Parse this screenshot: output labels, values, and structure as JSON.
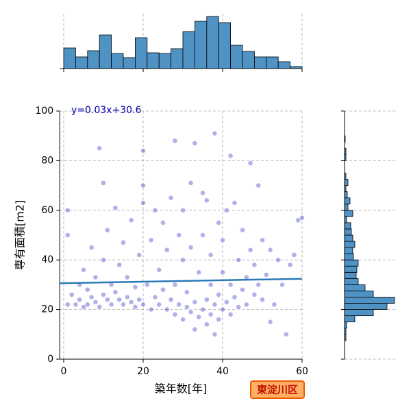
{
  "chart_data": [
    {
      "type": "scatter",
      "xlabel": "築年数[年]",
      "ylabel": "専有面積[m2]",
      "annotation": "y=0.03x+30.6",
      "xlim": [
        -1,
        60
      ],
      "ylim": [
        0,
        100
      ],
      "xticks": [
        0,
        20,
        40,
        60
      ],
      "yticks": [
        0,
        20,
        40,
        60,
        80,
        100
      ],
      "grid": true,
      "color": "#2020c0",
      "x": [
        1,
        1,
        1,
        2,
        3,
        4,
        4,
        5,
        5,
        6,
        6,
        7,
        7,
        8,
        8,
        9,
        9,
        10,
        10,
        10,
        11,
        11,
        12,
        12,
        13,
        13,
        14,
        14,
        15,
        15,
        16,
        16,
        17,
        17,
        18,
        18,
        19,
        19,
        20,
        20,
        20,
        20,
        21,
        22,
        22,
        23,
        23,
        24,
        24,
        25,
        25,
        26,
        26,
        27,
        27,
        28,
        28,
        28,
        29,
        29,
        30,
        30,
        30,
        31,
        31,
        32,
        32,
        32,
        33,
        33,
        33,
        34,
        34,
        35,
        35,
        35,
        36,
        36,
        36,
        37,
        37,
        37,
        38,
        38,
        38,
        39,
        39,
        39,
        40,
        40,
        40,
        41,
        41,
        42,
        42,
        42,
        43,
        43,
        44,
        44,
        45,
        45,
        46,
        46,
        47,
        47,
        48,
        48,
        49,
        49,
        50,
        50,
        51,
        52,
        52,
        53,
        54,
        55,
        56,
        57,
        58,
        59,
        60
      ],
      "y": [
        22,
        50,
        60,
        26,
        22,
        24,
        30,
        21,
        36,
        22,
        28,
        25,
        45,
        23,
        33,
        21,
        85,
        26,
        40,
        71,
        24,
        52,
        22,
        30,
        27,
        61,
        24,
        38,
        22,
        47,
        25,
        33,
        23,
        56,
        21,
        29,
        24,
        42,
        84,
        22,
        70,
        63,
        30,
        20,
        48,
        25,
        60,
        22,
        36,
        28,
        55,
        20,
        44,
        24,
        65,
        88,
        18,
        30,
        22,
        50,
        16,
        40,
        60,
        21,
        27,
        19,
        71,
        45,
        12,
        23,
        87,
        17,
        35,
        20,
        50,
        67,
        14,
        24,
        64,
        18,
        30,
        42,
        10,
        22,
        91,
        16,
        26,
        55,
        20,
        35,
        48,
        23,
        60,
        18,
        30,
        82,
        25,
        63,
        21,
        40,
        28,
        52,
        33,
        22,
        44,
        79,
        26,
        38,
        30,
        70,
        24,
        48,
        34,
        15,
        44,
        22,
        40,
        30,
        10,
        38,
        42,
        56,
        57
      ],
      "fit_line": {
        "color": "#2a7ab8",
        "x": [
          -1,
          60
        ],
        "y": [
          30.6,
          32.4
        ]
      }
    },
    {
      "type": "histogram",
      "orientation": "vertical",
      "color": "#4f92c4",
      "bins": [
        0,
        3,
        6,
        9,
        12,
        15,
        18,
        21,
        24,
        27,
        30,
        33,
        36,
        39,
        42,
        45,
        48,
        51,
        54,
        57,
        60
      ],
      "counts": [
        30,
        17,
        26,
        49,
        22,
        16,
        45,
        23,
        22,
        29,
        54,
        69,
        76,
        67,
        34,
        25,
        17,
        17,
        10,
        3
      ],
      "xlim": [
        -1,
        60
      ],
      "ylim": [
        0,
        80
      ],
      "xticks": [
        0,
        20,
        40,
        60
      ]
    },
    {
      "type": "histogram",
      "orientation": "horizontal",
      "color": "#4f92c4",
      "bins": [
        7.5,
        10,
        12.5,
        15,
        17.5,
        20,
        22.5,
        25,
        27.5,
        30,
        32.5,
        35,
        37.5,
        40,
        42.5,
        45,
        47.5,
        50,
        52.5,
        55,
        57.5,
        60,
        62.5,
        65,
        67.5,
        70,
        72.5,
        75,
        77.5,
        80,
        82.5,
        85,
        87.5,
        90,
        92.5
      ],
      "counts": [
        2,
        2,
        3,
        15,
        42,
        62,
        73,
        42,
        30,
        20,
        17,
        18,
        20,
        13,
        12,
        15,
        12,
        10,
        9,
        3,
        12,
        5,
        8,
        4,
        2,
        5,
        2,
        0,
        0,
        2,
        2,
        0,
        1,
        0
      ],
      "xlim": [
        0,
        80
      ],
      "ylim": [
        0,
        100
      ],
      "yticks": [
        0,
        20,
        40,
        60,
        80,
        100
      ]
    }
  ],
  "badge": "東淀川区"
}
